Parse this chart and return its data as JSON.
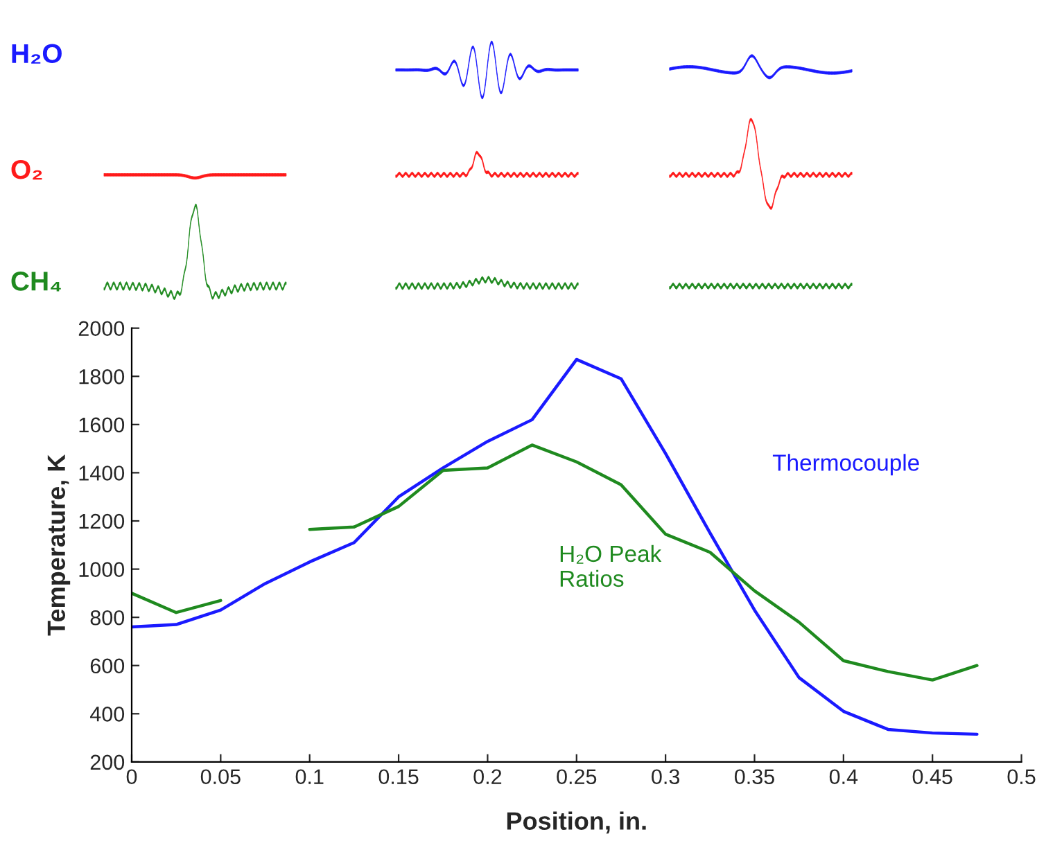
{
  "chart_data": {
    "type": "line",
    "xlabel": "Position, in.",
    "ylabel": "Temperature, K",
    "x": [
      0,
      0.025,
      0.05,
      0.075,
      0.1,
      0.125,
      0.15,
      0.175,
      0.2,
      0.225,
      0.25,
      0.275,
      0.3,
      0.325,
      0.35,
      0.375,
      0.4,
      0.425,
      0.45,
      0.475
    ],
    "series": [
      {
        "name": "Thermocouple",
        "color": "#1a1aff",
        "values": [
          760,
          770,
          830,
          940,
          1030,
          1110,
          1300,
          1420,
          1530,
          1620,
          1870,
          1790,
          1480,
          1150,
          830,
          550,
          410,
          335,
          320,
          315
        ]
      },
      {
        "name": "H₂O Peak\nRatios",
        "color": "#1f8a1f",
        "values": [
          900,
          820,
          870,
          null,
          1165,
          1175,
          1260,
          1410,
          1420,
          1515,
          1445,
          1350,
          1145,
          1070,
          910,
          780,
          620,
          575,
          540,
          600
        ]
      }
    ],
    "xlim": [
      0,
      0.5
    ],
    "xticks": [
      0,
      0.05,
      0.1,
      0.15,
      0.2,
      0.25,
      0.3,
      0.35,
      0.4,
      0.45,
      0.5
    ],
    "ylim": [
      200,
      2000
    ],
    "yticks": [
      200,
      400,
      600,
      800,
      1000,
      1200,
      1400,
      1600,
      1800,
      2000
    ],
    "grid": false,
    "legend": false,
    "line_style": "solid",
    "marker": "none",
    "annotations": [
      "H₂O",
      "O₂",
      "CH₄"
    ]
  }
}
